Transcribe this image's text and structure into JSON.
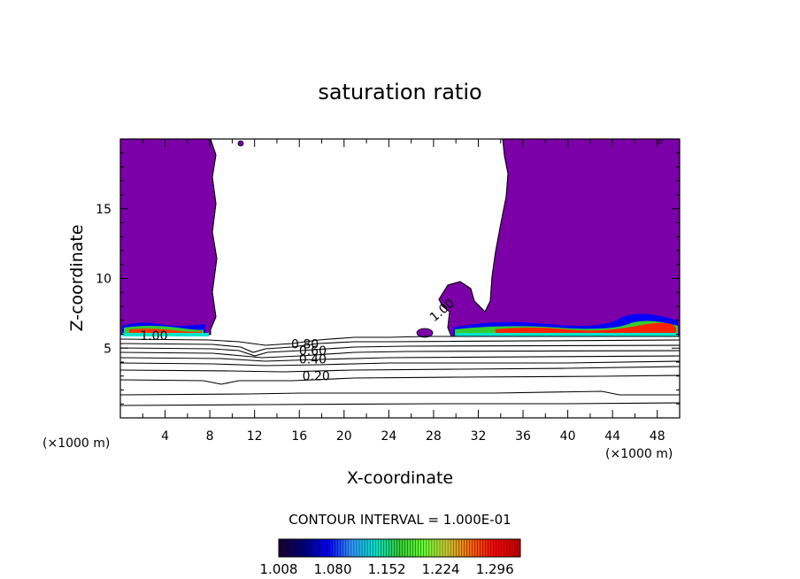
{
  "chart_data": {
    "type": "contour",
    "title": "saturation ratio",
    "xlabel": "X-coordinate",
    "ylabel": "Z-coordinate",
    "x_unit": "(×1000 m)",
    "y_unit": "(×1000 m)",
    "xlim": [
      0,
      50
    ],
    "ylim": [
      0,
      20
    ],
    "x_ticks": [
      4,
      8,
      12,
      16,
      20,
      24,
      28,
      32,
      36,
      40,
      44,
      48
    ],
    "y_ticks": [
      5,
      10,
      15
    ],
    "contour_levels": [
      0.1,
      0.2,
      0.3,
      0.4,
      0.5,
      0.6,
      0.7,
      0.8,
      0.9,
      1.0
    ],
    "contour_labels": [
      {
        "text": "0.20",
        "x": 17.5,
        "z": 2.7
      },
      {
        "text": "0.40",
        "x": 17.2,
        "z": 3.9
      },
      {
        "text": "0.60",
        "x": 17.2,
        "z": 4.5
      },
      {
        "text": "0.80",
        "x": 16.5,
        "z": 5.0
      },
      {
        "text": "1.00",
        "x": 3.0,
        "z": 5.6
      },
      {
        "text": "1.00",
        "x": 29.0,
        "z": 7.5
      }
    ],
    "contour_interval_text": "CONTOUR INTERVAL = 1.000E-01",
    "colorbar": {
      "min": 1.008,
      "max": 1.33,
      "tick_labels": [
        "1.008",
        "1.080",
        "1.152",
        "1.224",
        "1.296"
      ],
      "colors": [
        "#1a0033",
        "#000080",
        "#0000ff",
        "#3399ff",
        "#00e5cc",
        "#33cc33",
        "#66ff33",
        "#cccc33",
        "#ff6600",
        "#ff0000",
        "#cc0000"
      ]
    },
    "fill_color": "#7b00a8",
    "grid": false,
    "legend": "none"
  }
}
